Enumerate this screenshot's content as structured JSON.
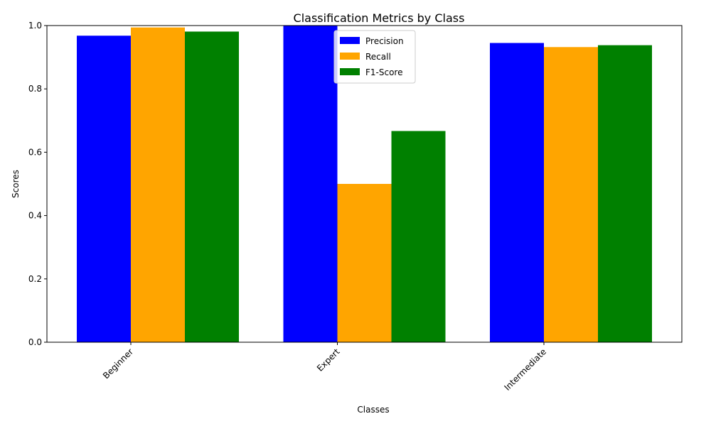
{
  "chart_data": {
    "type": "bar",
    "title": "Classification Metrics by Class",
    "xlabel": "Classes",
    "ylabel": "Scores",
    "categories": [
      "Beginner",
      "Expert",
      "Intermediate"
    ],
    "series": [
      {
        "name": "Precision",
        "color": "#0000ff",
        "values": [
          0.968,
          1.0,
          0.945
        ]
      },
      {
        "name": "Recall",
        "color": "#ffa500",
        "values": [
          0.994,
          0.5,
          0.932
        ]
      },
      {
        "name": "F1-Score",
        "color": "#008000",
        "values": [
          0.981,
          0.667,
          0.938
        ]
      }
    ],
    "ylim": [
      0,
      1.0
    ],
    "yticks": [
      "0.0",
      "0.2",
      "0.4",
      "0.6",
      "0.8",
      "1.0"
    ],
    "grid": false,
    "legend_position": "top-center",
    "x_tick_rotation": 45
  }
}
